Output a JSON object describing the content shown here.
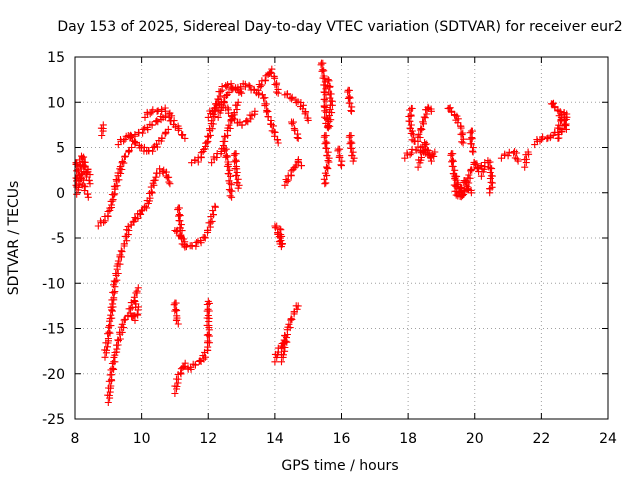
{
  "chart_data": {
    "type": "scatter",
    "title": "Day 153 of 2025, Sidereal Day-to-day VTEC variation (SDTVAR) for receiver eur2",
    "xlabel": "GPS time / hours",
    "ylabel": "SDTVAR / TECUs",
    "xlim": [
      8,
      24
    ],
    "ylim": [
      -25,
      15
    ],
    "xticks": [
      8,
      10,
      12,
      14,
      16,
      18,
      20,
      22,
      24
    ],
    "yticks": [
      -25,
      -20,
      -15,
      -10,
      -5,
      0,
      5,
      10,
      15
    ],
    "grid": true,
    "legend": "none",
    "marker": "plus",
    "series_color": "#ff0000",
    "tracks": [
      [
        [
          8.0,
          3.5
        ],
        [
          8.1,
          2.5
        ],
        [
          8.2,
          1.5
        ],
        [
          8.3,
          0.5
        ],
        [
          8.4,
          -0.5
        ]
      ],
      [
        [
          8.0,
          1.0
        ],
        [
          8.1,
          2.5
        ],
        [
          8.2,
          4.0
        ],
        [
          8.3,
          3.2
        ],
        [
          8.45,
          2.0
        ]
      ],
      [
        [
          8.05,
          0.0
        ],
        [
          8.15,
          1.5
        ],
        [
          8.25,
          3.0
        ],
        [
          8.35,
          2.0
        ],
        [
          8.45,
          1.0
        ]
      ],
      [
        [
          8.8,
          6.5
        ],
        [
          8.85,
          7.5
        ]
      ],
      [
        [
          8.7,
          -3.5
        ],
        [
          8.9,
          -3.0
        ],
        [
          9.05,
          -2.0
        ],
        [
          9.2,
          0.5
        ],
        [
          9.35,
          2.5
        ],
        [
          9.5,
          4.0
        ],
        [
          9.7,
          5.0
        ]
      ],
      [
        [
          8.9,
          -18.0
        ],
        [
          9.0,
          -16.0
        ],
        [
          9.1,
          -13.0
        ],
        [
          9.2,
          -10.0
        ],
        [
          9.3,
          -8.0
        ],
        [
          9.4,
          -6.5
        ],
        [
          9.5,
          -5.5
        ],
        [
          9.6,
          -4.0
        ],
        [
          9.7,
          -3.5
        ],
        [
          9.8,
          -3.0
        ],
        [
          9.9,
          -2.5
        ],
        [
          10.0,
          -2.0
        ],
        [
          10.1,
          -1.5
        ]
      ],
      [
        [
          9.0,
          -23.0
        ],
        [
          9.1,
          -20.0
        ],
        [
          9.2,
          -18.0
        ],
        [
          9.3,
          -16.5
        ],
        [
          9.4,
          -15.0
        ],
        [
          9.5,
          -14.0
        ],
        [
          9.6,
          -13.5
        ],
        [
          9.7,
          -12.5
        ],
        [
          9.8,
          -11.5
        ],
        [
          9.9,
          -10.5
        ]
      ],
      [
        [
          9.3,
          5.5
        ],
        [
          9.5,
          6.0
        ],
        [
          9.7,
          6.2
        ],
        [
          9.9,
          6.5
        ],
        [
          10.1,
          7.0
        ],
        [
          10.3,
          7.5
        ],
        [
          10.5,
          8.0
        ],
        [
          10.7,
          8.5
        ],
        [
          10.9,
          8.0
        ],
        [
          11.1,
          7.0
        ],
        [
          11.3,
          6.0
        ]
      ],
      [
        [
          9.6,
          6.5
        ],
        [
          9.8,
          5.5
        ],
        [
          10.0,
          5.0
        ],
        [
          10.2,
          4.5
        ],
        [
          10.4,
          5.0
        ],
        [
          10.6,
          6.0
        ],
        [
          10.8,
          7.0
        ]
      ],
      [
        [
          10.1,
          8.5
        ],
        [
          10.3,
          9.0
        ],
        [
          10.5,
          9.0
        ],
        [
          10.7,
          9.2
        ],
        [
          10.9,
          8.5
        ]
      ],
      [
        [
          10.15,
          -1.5
        ],
        [
          10.25,
          -0.5
        ],
        [
          10.35,
          1.0
        ],
        [
          10.45,
          2.0
        ],
        [
          10.55,
          2.5
        ],
        [
          10.65,
          2.5
        ],
        [
          10.75,
          2.0
        ],
        [
          10.85,
          1.0
        ]
      ],
      [
        [
          9.7,
          -13.5
        ],
        [
          9.8,
          -14.0
        ],
        [
          9.9,
          -13.0
        ],
        [
          9.8,
          -12.0
        ]
      ],
      [
        [
          11.0,
          -12.0
        ],
        [
          11.05,
          -14.0
        ],
        [
          11.1,
          -14.5
        ]
      ],
      [
        [
          11.0,
          -22.0
        ],
        [
          11.1,
          -20.5
        ],
        [
          11.2,
          -19.5
        ],
        [
          11.3,
          -19.0
        ],
        [
          11.4,
          -19.5
        ],
        [
          11.6,
          -19.0
        ],
        [
          11.8,
          -18.5
        ],
        [
          11.9,
          -18.0
        ],
        [
          12.0,
          -17.0
        ],
        [
          12.0,
          -15.0
        ],
        [
          12.0,
          -12.0
        ]
      ],
      [
        [
          11.0,
          -4.0
        ],
        [
          11.2,
          -5.0
        ],
        [
          11.35,
          -6.0
        ],
        [
          11.5,
          -6.0
        ],
        [
          11.7,
          -5.5
        ],
        [
          11.9,
          -5.0
        ],
        [
          12.0,
          -4.0
        ],
        [
          12.1,
          -3.0
        ],
        [
          12.2,
          -1.5
        ]
      ],
      [
        [
          11.1,
          -1.5
        ],
        [
          11.15,
          -3.0
        ],
        [
          11.2,
          -5.0
        ],
        [
          11.3,
          -6.0
        ]
      ],
      [
        [
          11.5,
          3.5
        ],
        [
          11.7,
          3.5
        ],
        [
          11.85,
          4.5
        ],
        [
          12.0,
          6.0
        ],
        [
          12.1,
          7.5
        ],
        [
          12.2,
          9.0
        ],
        [
          12.3,
          10.5
        ],
        [
          12.4,
          11.5
        ],
        [
          12.6,
          12.0
        ],
        [
          12.8,
          11.5
        ],
        [
          13.0,
          11.0
        ]
      ],
      [
        [
          12.1,
          3.5
        ],
        [
          12.25,
          4.0
        ],
        [
          12.4,
          4.5
        ],
        [
          12.5,
          6.0
        ],
        [
          12.6,
          7.0
        ],
        [
          12.7,
          8.0
        ],
        [
          12.8,
          9.0
        ],
        [
          12.9,
          10.0
        ]
      ],
      [
        [
          12.3,
          8.5
        ],
        [
          12.4,
          9.5
        ],
        [
          12.5,
          10.5
        ],
        [
          12.7,
          11.5
        ],
        [
          12.9,
          11.5
        ],
        [
          13.1,
          12.0
        ],
        [
          13.3,
          11.5
        ],
        [
          13.5,
          11.0
        ],
        [
          13.7,
          10.5
        ]
      ],
      [
        [
          12.0,
          8.5
        ],
        [
          12.2,
          9.5
        ],
        [
          12.4,
          10.0
        ],
        [
          12.6,
          9.0
        ],
        [
          12.8,
          8.0
        ],
        [
          13.0,
          7.5
        ],
        [
          13.2,
          8.0
        ],
        [
          13.4,
          9.0
        ]
      ],
      [
        [
          12.5,
          5.0
        ],
        [
          12.6,
          3.0
        ],
        [
          12.65,
          1.0
        ],
        [
          12.7,
          -0.5
        ]
      ],
      [
        [
          12.8,
          4.5
        ],
        [
          12.85,
          2.0
        ],
        [
          12.9,
          0.5
        ]
      ],
      [
        [
          13.5,
          11.5
        ],
        [
          13.6,
          12.0
        ],
        [
          13.8,
          13.0
        ],
        [
          13.9,
          13.5
        ],
        [
          14.0,
          12.5
        ],
        [
          14.1,
          11.0
        ]
      ],
      [
        [
          13.7,
          10.0
        ],
        [
          13.8,
          8.5
        ],
        [
          13.9,
          7.5
        ],
        [
          14.0,
          6.5
        ],
        [
          14.1,
          5.5
        ]
      ],
      [
        [
          14.0,
          -3.5
        ],
        [
          14.1,
          -4.5
        ],
        [
          14.2,
          -6.0
        ],
        [
          14.15,
          -4.0
        ]
      ],
      [
        [
          14.0,
          -18.5
        ],
        [
          14.1,
          -17.5
        ],
        [
          14.2,
          -17.0
        ],
        [
          14.3,
          -16.0
        ],
        [
          14.4,
          -15.0
        ],
        [
          14.5,
          -14.0
        ],
        [
          14.6,
          -13.0
        ],
        [
          14.7,
          -12.5
        ]
      ],
      [
        [
          14.2,
          -18.5
        ],
        [
          14.3,
          -17.0
        ],
        [
          14.35,
          -16.0
        ]
      ],
      [
        [
          14.3,
          1.0
        ],
        [
          14.4,
          1.5
        ],
        [
          14.55,
          2.5
        ],
        [
          14.7,
          3.5
        ],
        [
          14.8,
          3.0
        ]
      ],
      [
        [
          14.3,
          11.0
        ],
        [
          14.5,
          10.5
        ],
        [
          14.7,
          10.0
        ],
        [
          14.85,
          9.5
        ],
        [
          15.0,
          8.0
        ]
      ],
      [
        [
          14.5,
          8.0
        ],
        [
          14.6,
          7.0
        ],
        [
          14.7,
          6.0
        ]
      ],
      [
        [
          15.4,
          14.5
        ],
        [
          15.5,
          12.0
        ],
        [
          15.5,
          9.0
        ],
        [
          15.6,
          7.0
        ],
        [
          15.7,
          10.0
        ],
        [
          15.6,
          12.5
        ]
      ],
      [
        [
          15.5,
          6.5
        ],
        [
          15.55,
          5.0
        ],
        [
          15.6,
          3.5
        ],
        [
          15.5,
          1.0
        ]
      ],
      [
        [
          15.9,
          5.0
        ],
        [
          15.95,
          4.0
        ],
        [
          16.0,
          3.0
        ]
      ],
      [
        [
          16.2,
          11.5
        ],
        [
          16.25,
          10.0
        ],
        [
          16.3,
          9.0
        ]
      ],
      [
        [
          16.25,
          6.5
        ],
        [
          16.3,
          5.0
        ],
        [
          16.35,
          3.5
        ]
      ],
      [
        [
          17.9,
          4.0
        ],
        [
          18.1,
          4.5
        ],
        [
          18.3,
          5.0
        ],
        [
          18.5,
          4.5
        ],
        [
          18.7,
          4.0
        ],
        [
          18.8,
          4.5
        ]
      ],
      [
        [
          18.1,
          9.5
        ],
        [
          18.05,
          8.0
        ],
        [
          18.1,
          6.5
        ],
        [
          18.2,
          5.5
        ],
        [
          18.3,
          6.0
        ],
        [
          18.4,
          7.0
        ],
        [
          18.5,
          8.5
        ],
        [
          18.6,
          9.5
        ],
        [
          18.7,
          9.0
        ]
      ],
      [
        [
          18.3,
          3.0
        ],
        [
          18.4,
          4.0
        ],
        [
          18.5,
          5.5
        ],
        [
          18.6,
          4.5
        ],
        [
          18.7,
          3.5
        ]
      ],
      [
        [
          19.2,
          9.5
        ],
        [
          19.3,
          9.0
        ],
        [
          19.4,
          8.5
        ],
        [
          19.5,
          8.0
        ],
        [
          19.6,
          7.0
        ],
        [
          19.65,
          5.5
        ]
      ],
      [
        [
          19.3,
          4.5
        ],
        [
          19.35,
          3.0
        ],
        [
          19.4,
          1.5
        ],
        [
          19.45,
          0.0
        ],
        [
          19.5,
          -0.5
        ],
        [
          19.6,
          0.5
        ],
        [
          19.7,
          1.5
        ],
        [
          19.8,
          0.5
        ],
        [
          19.9,
          0.0
        ]
      ],
      [
        [
          19.4,
          2.0
        ],
        [
          19.5,
          1.0
        ],
        [
          19.6,
          -0.5
        ],
        [
          19.7,
          0.0
        ],
        [
          19.8,
          1.5
        ],
        [
          19.9,
          2.5
        ],
        [
          20.0,
          3.5
        ],
        [
          20.1,
          2.5
        ],
        [
          20.2,
          3.0
        ]
      ],
      [
        [
          19.9,
          7.0
        ],
        [
          19.9,
          5.5
        ],
        [
          19.95,
          4.5
        ]
      ],
      [
        [
          20.2,
          2.0
        ],
        [
          20.3,
          3.0
        ],
        [
          20.4,
          3.5
        ],
        [
          20.5,
          2.5
        ],
        [
          20.5,
          1.0
        ],
        [
          20.45,
          0.0
        ]
      ],
      [
        [
          20.8,
          4.0
        ],
        [
          21.0,
          4.2
        ],
        [
          21.2,
          4.5
        ],
        [
          21.3,
          3.5
        ]
      ],
      [
        [
          21.5,
          3.0
        ],
        [
          21.55,
          3.8
        ],
        [
          21.6,
          4.5
        ]
      ],
      [
        [
          21.8,
          5.5
        ],
        [
          22.0,
          6.0
        ],
        [
          22.2,
          6.0
        ],
        [
          22.4,
          6.5
        ],
        [
          22.5,
          7.0
        ],
        [
          22.6,
          8.0
        ],
        [
          22.7,
          9.0
        ],
        [
          22.75,
          8.5
        ],
        [
          22.7,
          7.5
        ],
        [
          22.5,
          6.0
        ]
      ],
      [
        [
          22.3,
          10.0
        ],
        [
          22.4,
          9.5
        ],
        [
          22.5,
          9.0
        ],
        [
          22.6,
          8.5
        ],
        [
          22.7,
          8.0
        ],
        [
          22.75,
          7.0
        ]
      ]
    ]
  }
}
